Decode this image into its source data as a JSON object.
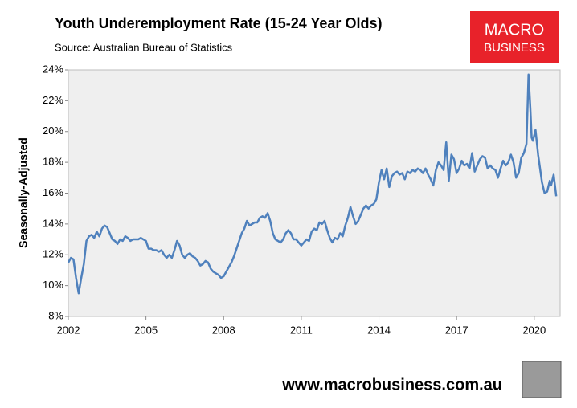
{
  "chart_data": {
    "type": "line",
    "title": "Youth Underemployment Rate (15-24 Year Olds)",
    "subtitle": "Source: Australian Bureau of Statistics",
    "ylabel": "Seasonally-Adjusted",
    "logo_lines": [
      "MACRO",
      "BUSINESS"
    ],
    "footer": "www.macrobusiness.com.au",
    "xlim": [
      2002,
      2021
    ],
    "xticks": [
      2002,
      2005,
      2008,
      2011,
      2014,
      2017,
      2020
    ],
    "ylim": [
      8,
      24
    ],
    "yticks": [
      {
        "value": 8,
        "label": "8%"
      },
      {
        "value": 10,
        "label": "10%"
      },
      {
        "value": 12,
        "label": "12%"
      },
      {
        "value": 14,
        "label": "14%"
      },
      {
        "value": 16,
        "label": "16%"
      },
      {
        "value": 18,
        "label": "18%"
      },
      {
        "value": 20,
        "label": "20%"
      },
      {
        "value": 22,
        "label": "22%"
      },
      {
        "value": 24,
        "label": "24%"
      }
    ],
    "grid": false,
    "series": [
      {
        "name": "Youth underemployment rate",
        "color": "#4f81bd",
        "x": [
          2002.0,
          2002.1,
          2002.2,
          2002.3,
          2002.4,
          2002.5,
          2002.6,
          2002.7,
          2002.8,
          2002.9,
          2003.0,
          2003.1,
          2003.2,
          2003.3,
          2003.4,
          2003.5,
          2003.6,
          2003.7,
          2003.8,
          2003.9,
          2004.0,
          2004.1,
          2004.2,
          2004.3,
          2004.4,
          2004.5,
          2004.7,
          2004.8,
          2004.9,
          2005.0,
          2005.1,
          2005.2,
          2005.3,
          2005.4,
          2005.5,
          2005.6,
          2005.7,
          2005.8,
          2005.9,
          2006.0,
          2006.1,
          2006.2,
          2006.3,
          2006.4,
          2006.5,
          2006.6,
          2006.7,
          2006.8,
          2006.9,
          2007.0,
          2007.1,
          2007.2,
          2007.3,
          2007.4,
          2007.5,
          2007.6,
          2007.7,
          2007.8,
          2007.9,
          2008.0,
          2008.1,
          2008.2,
          2008.3,
          2008.4,
          2008.5,
          2008.6,
          2008.7,
          2008.8,
          2008.9,
          2009.0,
          2009.1,
          2009.2,
          2009.3,
          2009.4,
          2009.5,
          2009.6,
          2009.7,
          2009.8,
          2009.9,
          2010.0,
          2010.1,
          2010.2,
          2010.3,
          2010.4,
          2010.5,
          2010.6,
          2010.7,
          2010.8,
          2010.9,
          2011.0,
          2011.1,
          2011.2,
          2011.3,
          2011.4,
          2011.5,
          2011.6,
          2011.7,
          2011.8,
          2011.9,
          2012.0,
          2012.1,
          2012.2,
          2012.3,
          2012.4,
          2012.5,
          2012.6,
          2012.7,
          2012.8,
          2012.9,
          2013.0,
          2013.1,
          2013.2,
          2013.3,
          2013.4,
          2013.5,
          2013.6,
          2013.7,
          2013.8,
          2013.9,
          2014.0,
          2014.1,
          2014.2,
          2014.3,
          2014.4,
          2014.5,
          2014.6,
          2014.7,
          2014.8,
          2014.9,
          2015.0,
          2015.1,
          2015.2,
          2015.3,
          2015.4,
          2015.5,
          2015.6,
          2015.7,
          2015.8,
          2015.9,
          2016.0,
          2016.1,
          2016.2,
          2016.3,
          2016.4,
          2016.5,
          2016.6,
          2016.7,
          2016.8,
          2016.9,
          2017.0,
          2017.1,
          2017.2,
          2017.3,
          2017.4,
          2017.5,
          2017.6,
          2017.7,
          2017.8,
          2017.9,
          2018.0,
          2018.1,
          2018.2,
          2018.3,
          2018.4,
          2018.5,
          2018.6,
          2018.7,
          2018.8,
          2018.9,
          2019.0,
          2019.1,
          2019.2,
          2019.3,
          2019.4,
          2019.5,
          2019.6,
          2019.7,
          2019.78,
          2019.85,
          2019.9,
          2019.95,
          2020.05,
          2020.15,
          2020.3,
          2020.4,
          2020.5,
          2020.6,
          2020.65,
          2020.75,
          2020.85
        ],
        "values": [
          11.5,
          11.8,
          11.7,
          10.5,
          9.5,
          10.5,
          11.4,
          12.9,
          13.2,
          13.3,
          13.1,
          13.5,
          13.2,
          13.7,
          13.9,
          13.8,
          13.4,
          13.0,
          12.9,
          12.7,
          13.0,
          12.9,
          13.2,
          13.1,
          12.9,
          13.0,
          13.0,
          13.1,
          13.0,
          12.9,
          12.4,
          12.4,
          12.3,
          12.3,
          12.2,
          12.3,
          12.0,
          11.8,
          12.0,
          11.8,
          12.3,
          12.9,
          12.6,
          12.0,
          11.8,
          12.0,
          12.1,
          11.9,
          11.8,
          11.6,
          11.3,
          11.4,
          11.6,
          11.5,
          11.1,
          10.9,
          10.8,
          10.7,
          10.5,
          10.6,
          10.9,
          11.2,
          11.5,
          11.9,
          12.4,
          12.9,
          13.4,
          13.7,
          14.2,
          13.9,
          14.0,
          14.1,
          14.1,
          14.4,
          14.5,
          14.4,
          14.7,
          14.2,
          13.4,
          13.0,
          12.9,
          12.8,
          13.0,
          13.4,
          13.6,
          13.4,
          13.0,
          13.0,
          12.8,
          12.6,
          12.8,
          13.0,
          12.9,
          13.5,
          13.7,
          13.6,
          14.1,
          14.0,
          14.2,
          13.6,
          13.1,
          12.8,
          13.1,
          13.0,
          13.4,
          13.2,
          13.9,
          14.4,
          15.1,
          14.5,
          14.0,
          14.2,
          14.6,
          15.0,
          15.2,
          15.0,
          15.2,
          15.3,
          15.6,
          16.7,
          17.5,
          16.9,
          17.6,
          16.4,
          17.1,
          17.3,
          17.4,
          17.2,
          17.3,
          16.9,
          17.4,
          17.3,
          17.5,
          17.4,
          17.6,
          17.5,
          17.3,
          17.6,
          17.2,
          16.9,
          16.5,
          17.5,
          18.0,
          17.8,
          17.5,
          19.3,
          16.8,
          18.5,
          18.2,
          17.3,
          17.6,
          18.1,
          17.8,
          17.9,
          17.6,
          18.6,
          17.4,
          17.8,
          18.2,
          18.4,
          18.3,
          17.6,
          17.8,
          17.6,
          17.5,
          17.0,
          17.6,
          18.1,
          17.8,
          18.0,
          18.5,
          18.0,
          17.0,
          17.3,
          18.3,
          18.6,
          19.2,
          23.7,
          21.5,
          19.6,
          19.4,
          20.1,
          18.5,
          16.7,
          16.0,
          16.1,
          16.8,
          16.5,
          17.2,
          15.8
        ]
      }
    ]
  }
}
